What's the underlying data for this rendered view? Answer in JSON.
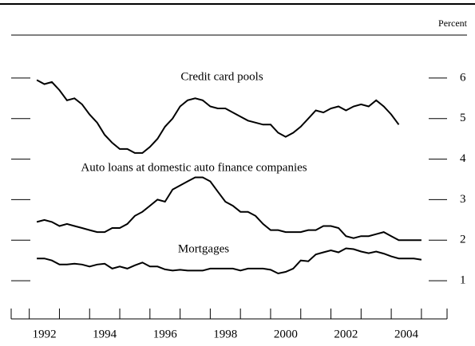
{
  "chart_data": {
    "type": "line",
    "ylabel": "Percent",
    "xlim": [
      1991.4,
      2005.85
    ],
    "ylim": [
      0,
      7
    ],
    "yticks": [
      1,
      2,
      3,
      4,
      5,
      6
    ],
    "xticks": [
      {
        "value": 1992.5,
        "label": "1992"
      },
      {
        "value": 1994.5,
        "label": "1994"
      },
      {
        "value": 1996.5,
        "label": "1996"
      },
      {
        "value": 1998.5,
        "label": "1998"
      },
      {
        "value": 2000.5,
        "label": "2000"
      },
      {
        "value": 2002.5,
        "label": "2002"
      },
      {
        "value": 2004.5,
        "label": "2004"
      }
    ],
    "xminorticks": [
      1992,
      1993,
      1994,
      1995,
      1996,
      1997,
      1998,
      1999,
      2000,
      2001,
      2002,
      2003,
      2004,
      2005
    ],
    "series": [
      {
        "name": "Credit card pools",
        "color": "#000000",
        "x": [
          1992.25,
          1992.5,
          1992.75,
          1993,
          1993.25,
          1993.5,
          1993.75,
          1994,
          1994.25,
          1994.5,
          1994.75,
          1995,
          1995.25,
          1995.5,
          1995.75,
          1996,
          1996.25,
          1996.5,
          1996.75,
          1997,
          1997.25,
          1997.5,
          1997.75,
          1998,
          1998.25,
          1998.5,
          1998.75,
          1999,
          1999.25,
          1999.5,
          1999.75,
          2000,
          2000.25,
          2000.5,
          2000.75,
          2001,
          2001.25,
          2001.5,
          2001.75,
          2002,
          2002.25,
          2002.5,
          2002.75,
          2003,
          2003.25,
          2003.5,
          2003.75,
          2004,
          2004.25
        ],
        "values": [
          5.95,
          5.85,
          5.9,
          5.7,
          5.45,
          5.5,
          5.35,
          5.1,
          4.9,
          4.6,
          4.4,
          4.25,
          4.25,
          4.15,
          4.15,
          4.3,
          4.5,
          4.8,
          5.0,
          5.3,
          5.45,
          5.5,
          5.45,
          5.3,
          5.25,
          5.25,
          5.15,
          5.05,
          4.95,
          4.9,
          4.85,
          4.85,
          4.65,
          4.55,
          4.65,
          4.8,
          5.0,
          5.2,
          5.15,
          5.25,
          5.3,
          5.2,
          5.3,
          5.35,
          5.3,
          5.45,
          5.3,
          5.1,
          4.85
        ]
      },
      {
        "name": "Auto loans at domestic auto finance companies",
        "color": "#000000",
        "x": [
          1992.25,
          1992.5,
          1992.75,
          1993,
          1993.25,
          1993.5,
          1993.75,
          1994,
          1994.25,
          1994.5,
          1994.75,
          1995,
          1995.25,
          1995.5,
          1995.75,
          1996,
          1996.25,
          1996.5,
          1996.75,
          1997,
          1997.25,
          1997.5,
          1997.75,
          1998,
          1998.25,
          1998.5,
          1998.75,
          1999,
          1999.25,
          1999.5,
          1999.75,
          2000,
          2000.25,
          2000.5,
          2000.75,
          2001,
          2001.25,
          2001.5,
          2001.75,
          2002,
          2002.25,
          2002.5,
          2002.75,
          2003,
          2003.25,
          2003.5,
          2003.75,
          2004,
          2004.25,
          2004.5,
          2004.75,
          2005
        ],
        "values": [
          2.45,
          2.5,
          2.45,
          2.35,
          2.4,
          2.35,
          2.3,
          2.25,
          2.2,
          2.2,
          2.3,
          2.3,
          2.4,
          2.6,
          2.7,
          2.85,
          3.0,
          2.95,
          3.25,
          3.35,
          3.45,
          3.55,
          3.55,
          3.45,
          3.2,
          2.95,
          2.85,
          2.7,
          2.7,
          2.6,
          2.4,
          2.25,
          2.25,
          2.2,
          2.2,
          2.2,
          2.25,
          2.25,
          2.35,
          2.35,
          2.3,
          2.1,
          2.05,
          2.1,
          2.1,
          2.15,
          2.2,
          2.1,
          2.0,
          2.0,
          2.0,
          2.0
        ]
      },
      {
        "name": "Mortgages",
        "color": "#000000",
        "x": [
          1992.25,
          1992.5,
          1992.75,
          1993,
          1993.25,
          1993.5,
          1993.75,
          1994,
          1994.25,
          1994.5,
          1994.75,
          1995,
          1995.25,
          1995.5,
          1995.75,
          1996,
          1996.25,
          1996.5,
          1996.75,
          1997,
          1997.25,
          1997.5,
          1997.75,
          1998,
          1998.25,
          1998.5,
          1998.75,
          1999,
          1999.25,
          1999.5,
          1999.75,
          2000,
          2000.25,
          2000.5,
          2000.75,
          2001,
          2001.25,
          2001.5,
          2001.75,
          2002,
          2002.25,
          2002.5,
          2002.75,
          2003,
          2003.25,
          2003.5,
          2003.75,
          2004,
          2004.25,
          2004.5,
          2004.75,
          2005
        ],
        "values": [
          1.55,
          1.55,
          1.5,
          1.4,
          1.4,
          1.42,
          1.4,
          1.35,
          1.4,
          1.42,
          1.3,
          1.35,
          1.3,
          1.38,
          1.45,
          1.35,
          1.35,
          1.28,
          1.25,
          1.27,
          1.25,
          1.25,
          1.25,
          1.3,
          1.3,
          1.3,
          1.3,
          1.25,
          1.3,
          1.3,
          1.3,
          1.27,
          1.18,
          1.22,
          1.3,
          1.5,
          1.48,
          1.65,
          1.7,
          1.75,
          1.7,
          1.8,
          1.78,
          1.72,
          1.68,
          1.72,
          1.67,
          1.6,
          1.55,
          1.55,
          1.55,
          1.52
        ]
      }
    ]
  }
}
